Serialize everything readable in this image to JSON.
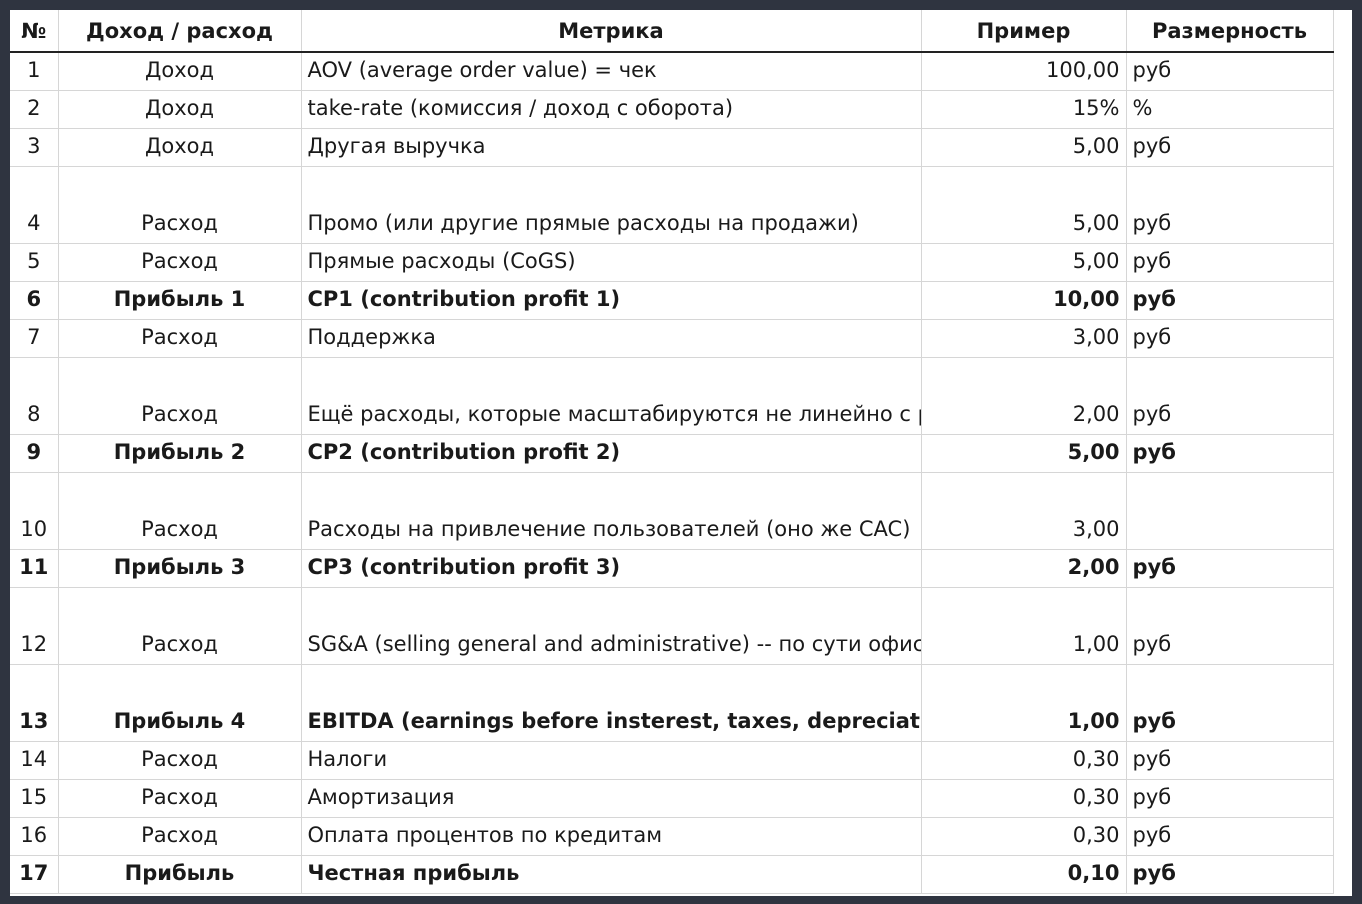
{
  "headers": {
    "num": "№",
    "type": "Доход / расход",
    "metric": "Метрика",
    "example": "Пример",
    "unit": "Размерность"
  },
  "rows": [
    {
      "num": "1",
      "type": "Доход",
      "metric": "AOV (average order value) = чек",
      "example": "100,00",
      "unit": "руб"
    },
    {
      "num": "2",
      "type": "Доход",
      "metric": "take-rate (комиссия / доход с оборота)",
      "example": "15%",
      "unit": "%"
    },
    {
      "num": "3",
      "type": "Доход",
      "metric": "Другая выручка",
      "example": "5,00",
      "unit": "руб"
    },
    {
      "num": "4",
      "type": "Расход",
      "metric": "Промо (или другие прямые расходы на продажи)",
      "example": "5,00",
      "unit": "руб"
    },
    {
      "num": "5",
      "type": "Расход",
      "metric": "Прямые расходы (CoGS)",
      "example": "5,00",
      "unit": "руб"
    },
    {
      "num": "6",
      "type": "Прибыль 1",
      "metric": "CP1 (contribution profit 1)",
      "example": "10,00",
      "unit": "руб"
    },
    {
      "num": "7",
      "type": "Расход",
      "metric": "Поддержка",
      "example": "3,00",
      "unit": "руб"
    },
    {
      "num": "8",
      "type": "Расход",
      "metric": "Ещё расходы, которые масштабируются не линейно с ростом бизнеса",
      "example": "2,00",
      "unit": "руб"
    },
    {
      "num": "9",
      "type": "Прибыль 2",
      "metric": "CP2 (contribution profit 2)",
      "example": "5,00",
      "unit": "руб"
    },
    {
      "num": "10",
      "type": "Расход",
      "metric": "Расходы на привлечение пользователей (оно же CAC)",
      "example": "3,00",
      "unit": ""
    },
    {
      "num": "11",
      "type": "Прибыль 3",
      "metric": "CP3 (contribution profit 3)",
      "example": "2,00",
      "unit": "руб"
    },
    {
      "num": "12",
      "type": "Расход",
      "metric": "SG&A (selling general and administrative) -- по сути офис",
      "example": "1,00",
      "unit": "руб"
    },
    {
      "num": "13",
      "type": "Прибыль 4",
      "metric": "EBITDA (earnings before insterest, taxes, depreciation and amortization)",
      "example": "1,00",
      "unit": "руб"
    },
    {
      "num": "14",
      "type": "Расход",
      "metric": "Налоги",
      "example": "0,30",
      "unit": "руб"
    },
    {
      "num": "15",
      "type": "Расход",
      "metric": "Амортизация",
      "example": "0,30",
      "unit": "руб"
    },
    {
      "num": "16",
      "type": "Расход",
      "metric": "Оплата процентов по кредитам",
      "example": "0,30",
      "unit": "руб"
    },
    {
      "num": "17",
      "type": "Прибыль",
      "metric": "Честная прибыль",
      "example": "0,10",
      "unit": "руб"
    }
  ]
}
